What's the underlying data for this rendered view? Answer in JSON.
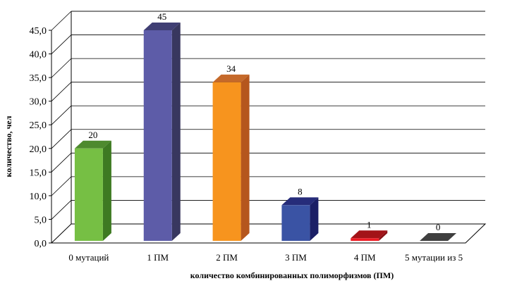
{
  "chart_data": {
    "type": "bar",
    "title": "",
    "xlabel": "количество комбинированных полиморфизмов (ПМ)",
    "ylabel": "количество, чел",
    "categories": [
      "0 мутаций",
      "1 ПМ",
      "2 ПМ",
      "3 ПМ",
      "4 ПМ",
      "5 мутации из 5"
    ],
    "values": [
      20,
      45,
      34,
      8,
      1,
      0
    ],
    "data_labels": [
      "20",
      "45",
      "34",
      "8",
      "1",
      "0"
    ],
    "ylim": [
      0,
      45
    ],
    "yticks": [
      "0,0",
      "5,0",
      "10,0",
      "15,0",
      "20,0",
      "25,0",
      "30,0",
      "35,0",
      "40,0",
      "45,0"
    ],
    "grid": true,
    "style": "3d-bar",
    "colors": [
      "#76BF44",
      "#5D5CA8",
      "#F7941E",
      "#3A53A4",
      "#ED1C24",
      "#5A5A5A"
    ],
    "side_colors": [
      "#3E7A22",
      "#38375F",
      "#B5561D",
      "#1B1F66",
      "#8A0F14",
      "#2E2E2E"
    ],
    "top_colors": [
      "#4E8A2E",
      "#403F74",
      "#C5692A",
      "#262C7A",
      "#A31318",
      "#3F3F3F"
    ]
  }
}
